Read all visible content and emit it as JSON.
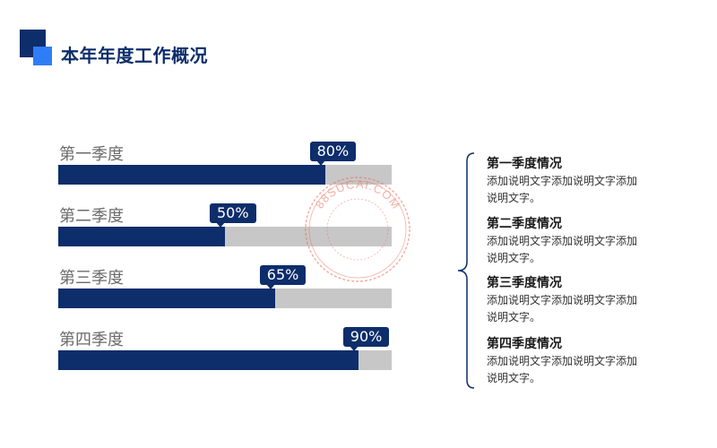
{
  "title": "本年年度工作概况",
  "quarters": [
    {
      "label": "第一季度",
      "percent_text": "80%",
      "value": 80
    },
    {
      "label": "第二季度",
      "percent_text": "50%",
      "value": 50
    },
    {
      "label": "第三季度",
      "percent_text": "65%",
      "value": 65
    },
    {
      "label": "第四季度",
      "percent_text": "90%",
      "value": 90
    }
  ],
  "descriptions": [
    {
      "title": "第一季度情况",
      "body": "添加说明文字添加说明文字添加说明文字。"
    },
    {
      "title": "第二季度情况",
      "body": "添加说明文字添加说明文字添加说明文字。"
    },
    {
      "title": "第三季度情况",
      "body": "添加说明文字添加说明文字添加说明文字。"
    },
    {
      "title": "第四季度情况",
      "body": "添加说明文字添加说明文字添加说明文字。"
    }
  ],
  "watermark": "88SUCAI.COM",
  "colors": {
    "bar_fill": "#0d2d6b",
    "bar_track": "#c7c7c7",
    "accent": "#2f7df6",
    "watermark": "#e8705a"
  }
}
